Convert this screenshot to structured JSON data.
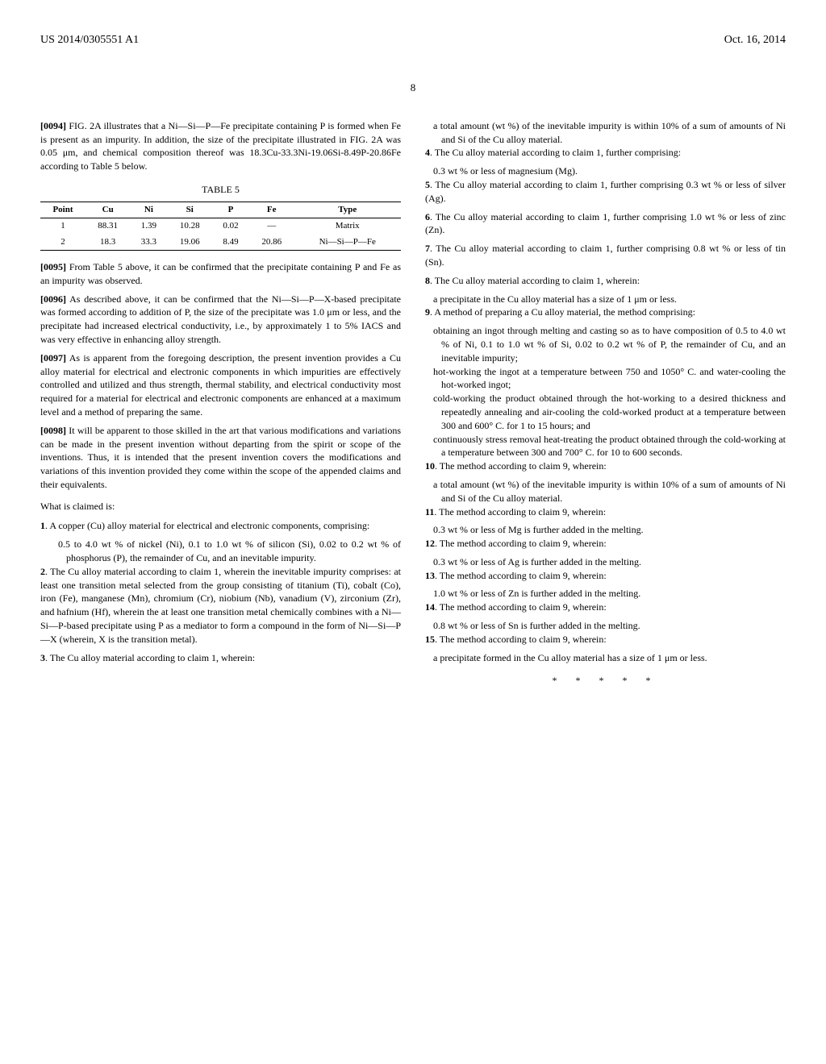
{
  "header": {
    "left": "US 2014/0305551 A1",
    "right": "Oct. 16, 2014"
  },
  "page_number": "8",
  "paragraphs": {
    "p0094_num": "[0094]",
    "p0094": "  FIG. 2A illustrates that a Ni—Si—P—Fe precipitate containing P is formed when Fe is present as an impurity. In addition, the size of the precipitate illustrated in FIG. 2A was 0.05 μm, and chemical composition thereof was 18.3Cu-33.3Ni-19.06Si-8.49P-20.86Fe according to Table 5 below.",
    "p0095_num": "[0095]",
    "p0095": "  From Table 5 above, it can be confirmed that the precipitate containing P and Fe as an impurity was observed.",
    "p0096_num": "[0096]",
    "p0096": "  As described above, it can be confirmed that the Ni—Si—P—X-based precipitate was formed according to addition of P, the size of the precipitate was 1.0 μm or less, and the precipitate had increased electrical conductivity, i.e., by approximately 1 to 5% IACS and was very effective in enhancing alloy strength.",
    "p0097_num": "[0097]",
    "p0097": "  As is apparent from the foregoing description, the present invention provides a Cu alloy material for electrical and electronic components in which impurities are effectively controlled and utilized and thus strength, thermal stability, and electrical conductivity most required for a material for electrical and electronic components are enhanced at a maximum level and a method of preparing the same.",
    "p0098_num": "[0098]",
    "p0098": "  It will be apparent to those skilled in the art that various modifications and variations can be made in the present invention without departing from the spirit or scope of the inventions. Thus, it is intended that the present invention covers the modifications and variations of this invention provided they come within the scope of the appended claims and their equivalents."
  },
  "table5": {
    "title": "TABLE 5",
    "headers": [
      "Point",
      "Cu",
      "Ni",
      "Si",
      "P",
      "Fe",
      "Type"
    ],
    "rows": [
      [
        "1",
        "88.31",
        "1.39",
        "10.28",
        "0.02",
        "—",
        "Matrix"
      ],
      [
        "2",
        "18.3",
        "33.3",
        "19.06",
        "8.49",
        "20.86",
        "Ni—Si—P—Fe"
      ]
    ]
  },
  "claims_intro": "What is claimed is:",
  "claims": {
    "c1_num": "1",
    "c1": ". A copper (Cu) alloy material for electrical and electronic components, comprising:",
    "c1a": "0.5 to 4.0 wt % of nickel (Ni), 0.1 to 1.0 wt % of silicon (Si), 0.02 to 0.2 wt % of phosphorus (P), the remainder of Cu, and an inevitable impurity.",
    "c2_num": "2",
    "c2": ". The Cu alloy material according to claim 1, wherein the inevitable impurity comprises: at least one transition metal selected from the group consisting of titanium (Ti), cobalt (Co), iron (Fe), manganese (Mn), chromium (Cr), niobium (Nb), vanadium (V), zirconium (Zr), and hafnium (Hf), wherein the at least one transition metal chemically combines with a Ni—Si—P-based precipitate using P as a mediator to form a compound in the form of Ni—Si—P—X (wherein, X is the transition metal).",
    "c3_num": "3",
    "c3": ". The Cu alloy material according to claim 1, wherein:",
    "c3a": "a total amount (wt %) of the inevitable impurity is within 10% of a sum of amounts of Ni and Si of the Cu alloy material.",
    "c4_num": "4",
    "c4": ". The Cu alloy material according to claim 1, further comprising:",
    "c4a": "0.3 wt % or less of magnesium (Mg).",
    "c5_num": "5",
    "c5": ". The Cu alloy material according to claim 1, further comprising 0.3 wt % or less of silver (Ag).",
    "c6_num": "6",
    "c6": ". The Cu alloy material according to claim 1, further comprising 1.0 wt % or less of zinc (Zn).",
    "c7_num": "7",
    "c7": ". The Cu alloy material according to claim 1, further comprising 0.8 wt % or less of tin (Sn).",
    "c8_num": "8",
    "c8": ". The Cu alloy material according to claim 1, wherein:",
    "c8a": "a precipitate in the Cu alloy material has a size of 1 μm or less.",
    "c9_num": "9",
    "c9": ". A method of preparing a Cu alloy material, the method comprising:",
    "c9a": "obtaining an ingot through melting and casting so as to have composition of 0.5 to 4.0 wt % of Ni, 0.1 to 1.0 wt % of Si, 0.02 to 0.2 wt % of P, the remainder of Cu, and an inevitable impurity;",
    "c9b": "hot-working the ingot at a temperature between 750 and 1050° C. and water-cooling the hot-worked ingot;",
    "c9c": "cold-working the product obtained through the hot-working to a desired thickness and repeatedly annealing and air-cooling the cold-worked product at a temperature between 300 and 600° C. for 1 to 15 hours; and",
    "c9d": "continuously stress removal heat-treating the product obtained through the cold-working at a temperature between 300 and 700° C. for 10 to 600 seconds.",
    "c10_num": "10",
    "c10": ". The method according to claim 9, wherein:",
    "c10a": "a total amount (wt %) of the inevitable impurity is within 10% of a sum of amounts of Ni and Si of the Cu alloy material.",
    "c11_num": "11",
    "c11": ". The method according to claim 9, wherein:",
    "c11a": "0.3 wt % or less of Mg is further added in the melting.",
    "c12_num": "12",
    "c12": ". The method according to claim 9, wherein:",
    "c12a": "0.3 wt % or less of Ag is further added in the melting.",
    "c13_num": "13",
    "c13": ". The method according to claim 9, wherein:",
    "c13a": "1.0 wt % or less of Zn is further added in the melting.",
    "c14_num": "14",
    "c14": ". The method according to claim 9, wherein:",
    "c14a": "0.8 wt % or less of Sn is further added in the melting.",
    "c15_num": "15",
    "c15": ". The method according to claim 9, wherein:",
    "c15a": "a precipitate formed in the Cu alloy material has a size of 1 μm or less."
  },
  "end_marks": "*  *  *  *  *"
}
